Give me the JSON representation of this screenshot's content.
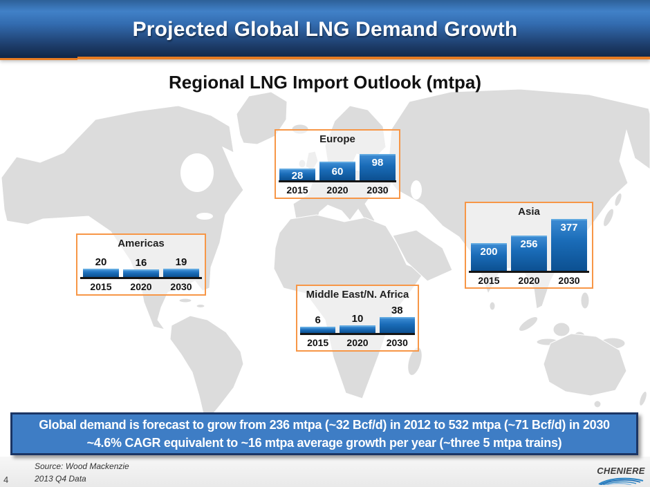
{
  "slide": {
    "title": "Projected Global LNG Demand Growth",
    "subtitle": "Regional LNG Import Outlook (mtpa)",
    "page_number": "4",
    "source_line1": "Source: Wood Mackenzie",
    "source_line2": "2013 Q4 Data",
    "logo_text": "CHENIERE"
  },
  "banner": {
    "line1": "Global demand is forecast to grow from 236 mtpa (~32 Bcf/d) in 2012 to 532 mtpa (~71 Bcf/d) in 2030",
    "line2": "~4.6% CAGR equivalent to ~16 mtpa average growth per year (~three 5 mtpa trains)"
  },
  "colors": {
    "header_orange": "#e87c22",
    "box_border_orange": "#f79646",
    "bar_blue_top": "#3b8ad2",
    "bar_blue_bottom": "#0c5091",
    "banner_fill": "#3e7dc5",
    "banner_border": "#1b3564",
    "map_land": "#dcdcdc"
  },
  "chart_data": [
    {
      "id": "europe",
      "type": "bar",
      "title": "Europe",
      "categories": [
        "2015",
        "2020",
        "2030"
      ],
      "values": [
        28,
        60,
        98
      ],
      "unit": "mtpa",
      "value_labels": "inside",
      "legend_position": "none",
      "grid": false
    },
    {
      "id": "americas",
      "type": "bar",
      "title": "Americas",
      "categories": [
        "2015",
        "2020",
        "2030"
      ],
      "values": [
        20,
        16,
        19
      ],
      "unit": "mtpa",
      "value_labels": "above",
      "legend_position": "none",
      "grid": false
    },
    {
      "id": "middle-east-n-africa",
      "type": "bar",
      "title": "Middle East/N. Africa",
      "categories": [
        "2015",
        "2020",
        "2030"
      ],
      "values": [
        6,
        10,
        38
      ],
      "unit": "mtpa",
      "value_labels": "above",
      "legend_position": "none",
      "grid": false
    },
    {
      "id": "asia",
      "type": "bar",
      "title": "Asia",
      "categories": [
        "2015",
        "2020",
        "2030"
      ],
      "values": [
        200,
        256,
        377
      ],
      "unit": "mtpa",
      "value_labels": "inside",
      "legend_position": "none",
      "grid": false
    }
  ]
}
